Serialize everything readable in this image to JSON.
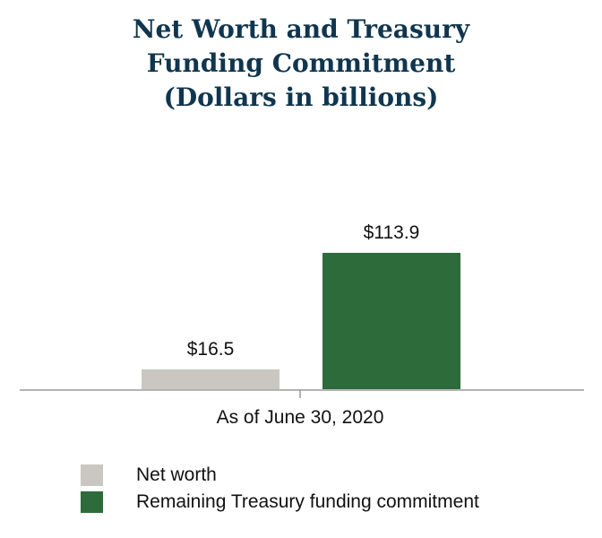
{
  "chart_data": {
    "type": "bar",
    "title_lines": [
      "Net Worth and Treasury",
      "Funding Commitment",
      "(Dollars in billions)"
    ],
    "categories": [
      "As of June 30, 2020"
    ],
    "series": [
      {
        "name": "Net worth",
        "values": [
          16.5
        ],
        "label": "$16.5",
        "color": "#cac7c2"
      },
      {
        "name": "Remaining Treasury funding commitment",
        "values": [
          113.9
        ],
        "label": "$113.9",
        "color": "#2e6b3a"
      }
    ],
    "xlabel": "",
    "ylabel": "",
    "ylim": [
      0,
      125
    ],
    "grid": false,
    "legend": "bottom-left"
  }
}
